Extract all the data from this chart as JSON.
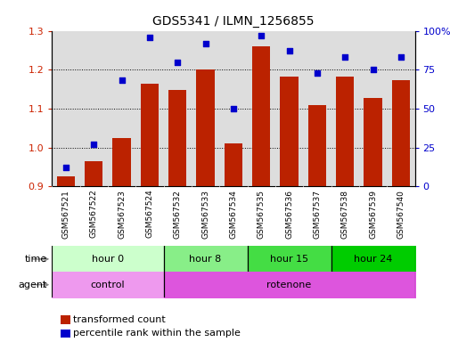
{
  "title": "GDS5341 / ILMN_1256855",
  "samples": [
    "GSM567521",
    "GSM567522",
    "GSM567523",
    "GSM567524",
    "GSM567532",
    "GSM567533",
    "GSM567534",
    "GSM567535",
    "GSM567536",
    "GSM567537",
    "GSM567538",
    "GSM567539",
    "GSM567540"
  ],
  "bar_values": [
    0.925,
    0.965,
    1.025,
    1.165,
    1.148,
    1.2,
    1.01,
    1.26,
    1.182,
    1.108,
    1.182,
    1.128,
    1.172
  ],
  "dot_values": [
    12,
    27,
    68,
    96,
    80,
    92,
    50,
    97,
    87,
    73,
    83,
    75,
    83
  ],
  "bar_color": "#bb2200",
  "dot_color": "#0000cc",
  "ylim_left": [
    0.9,
    1.3
  ],
  "ylim_right": [
    0,
    100
  ],
  "yticks_left": [
    0.9,
    1.0,
    1.1,
    1.2,
    1.3
  ],
  "yticks_right": [
    0,
    25,
    50,
    75,
    100
  ],
  "ytick_labels_right": [
    "0",
    "25",
    "50",
    "75",
    "100%"
  ],
  "gridlines": [
    1.0,
    1.1,
    1.2
  ],
  "time_groups": [
    {
      "label": "hour 0",
      "start": 0,
      "end": 4,
      "color": "#ccffcc"
    },
    {
      "label": "hour 8",
      "start": 4,
      "end": 7,
      "color": "#88ee88"
    },
    {
      "label": "hour 15",
      "start": 7,
      "end": 10,
      "color": "#44dd44"
    },
    {
      "label": "hour 24",
      "start": 10,
      "end": 13,
      "color": "#00cc00"
    }
  ],
  "agent_groups": [
    {
      "label": "control",
      "start": 0,
      "end": 4,
      "color": "#ee99ee"
    },
    {
      "label": "rotenone",
      "start": 4,
      "end": 13,
      "color": "#dd55dd"
    }
  ],
  "legend_bar_label": "transformed count",
  "legend_dot_label": "percentile rank within the sample",
  "bar_width": 0.65,
  "plot_bg_color": "#dddddd",
  "xtick_bg_color": "#cccccc"
}
